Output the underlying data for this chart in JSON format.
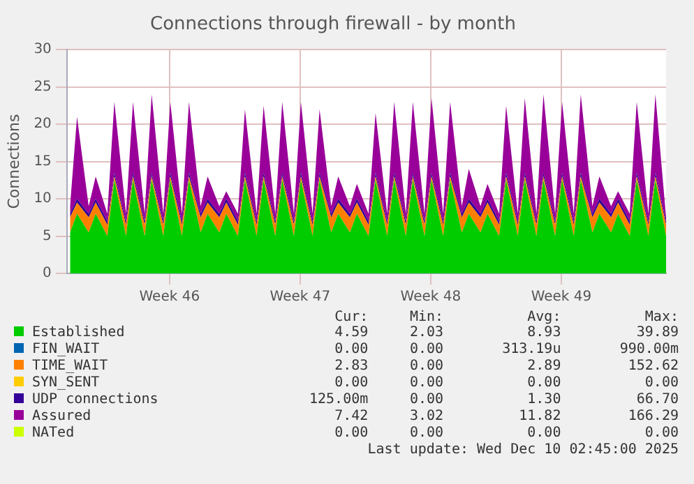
{
  "chart_data": {
    "type": "area",
    "stacked": true,
    "title": "Connections through firewall - by month",
    "ylabel": "Connections",
    "legend": "bottom",
    "grid": true,
    "marker": "none",
    "ylim": [
      0,
      30
    ],
    "yticks": [
      0,
      5,
      10,
      15,
      20,
      25,
      30
    ],
    "xlim": [
      "2025-11-08T00:00",
      "2025-12-10T02:45"
    ],
    "xticks": [
      {
        "value": "2025-11-13T12:00",
        "label": "Week 46"
      },
      {
        "value": "2025-11-20T12:00",
        "label": "Week 47"
      },
      {
        "value": "2025-11-27T12:00",
        "label": "Week 48"
      },
      {
        "value": "2025-12-04T12:00",
        "label": "Week 49"
      }
    ],
    "x": [
      "2025-11-08T04:00",
      "2025-11-08T13:00",
      "2025-11-09T04:00",
      "2025-11-09T13:00",
      "2025-11-10T04:00",
      "2025-11-10T13:00",
      "2025-11-11T04:00",
      "2025-11-11T13:00",
      "2025-11-12T04:00",
      "2025-11-12T13:00",
      "2025-11-13T04:00",
      "2025-11-13T13:00",
      "2025-11-14T04:00",
      "2025-11-14T13:00",
      "2025-11-15T04:00",
      "2025-11-15T13:00",
      "2025-11-16T04:00",
      "2025-11-16T13:00",
      "2025-11-17T04:00",
      "2025-11-17T13:00",
      "2025-11-18T04:00",
      "2025-11-18T13:00",
      "2025-11-19T04:00",
      "2025-11-19T13:00",
      "2025-11-20T04:00",
      "2025-11-20T13:00",
      "2025-11-21T04:00",
      "2025-11-21T13:00",
      "2025-11-22T04:00",
      "2025-11-22T13:00",
      "2025-11-23T04:00",
      "2025-11-23T13:00",
      "2025-11-24T04:00",
      "2025-11-24T13:00",
      "2025-11-25T04:00",
      "2025-11-25T13:00",
      "2025-11-26T04:00",
      "2025-11-26T13:00",
      "2025-11-27T04:00",
      "2025-11-27T13:00",
      "2025-11-28T04:00",
      "2025-11-28T13:00",
      "2025-11-29T04:00",
      "2025-11-29T13:00",
      "2025-11-30T04:00",
      "2025-11-30T13:00",
      "2025-12-01T04:00",
      "2025-12-01T13:00",
      "2025-12-02T04:00",
      "2025-12-02T13:00",
      "2025-12-03T04:00",
      "2025-12-03T13:00",
      "2025-12-04T04:00",
      "2025-12-04T13:00",
      "2025-12-05T04:00",
      "2025-12-05T13:00",
      "2025-12-06T04:00",
      "2025-12-06T13:00",
      "2025-12-07T04:00",
      "2025-12-07T13:00",
      "2025-12-08T04:00",
      "2025-12-08T13:00",
      "2025-12-09T04:00",
      "2025-12-09T13:00",
      "2025-12-10T02:45"
    ],
    "series": [
      {
        "name": "Established",
        "color": "#00cc00",
        "values": [
          5.5,
          8,
          5.5,
          8,
          5,
          12.5,
          5,
          12.5,
          5,
          12.5,
          5,
          12.5,
          5,
          12.5,
          5.5,
          8,
          5.5,
          8,
          5,
          12.5,
          5,
          12.5,
          5,
          12.5,
          5,
          12.5,
          5,
          12.5,
          5.5,
          8,
          5.5,
          8,
          5,
          12.5,
          5,
          12.5,
          5,
          12.5,
          5,
          12.5,
          5,
          12.5,
          5.5,
          8,
          5.5,
          8,
          5,
          12.5,
          5,
          12.5,
          5,
          12.5,
          5,
          12.5,
          5,
          12.5,
          5.5,
          8,
          5.5,
          8,
          5,
          12.5,
          5,
          12.5,
          5
        ]
      },
      {
        "name": "FIN_WAIT",
        "color": "#0066b3",
        "values": [
          null,
          null,
          null,
          null,
          null,
          null,
          null,
          null,
          null,
          null,
          null,
          null,
          null,
          null,
          null,
          null,
          null,
          null,
          null,
          null,
          null,
          null,
          null,
          null,
          null,
          null,
          null,
          null,
          null,
          null,
          null,
          null,
          null,
          null,
          null,
          null,
          null,
          null,
          null,
          null,
          null,
          null,
          null,
          null,
          null,
          null,
          null,
          null,
          null,
          null,
          null,
          null,
          null,
          null,
          null,
          null,
          null,
          null,
          null,
          null,
          null,
          null,
          null,
          null,
          null
        ]
      },
      {
        "name": "TIME_WAIT",
        "color": "#ff8000",
        "values": [
          2,
          1.5,
          2,
          1.5,
          1.5,
          0.5,
          1.5,
          0.5,
          1.5,
          0.5,
          1.5,
          0.5,
          1.5,
          0.5,
          2,
          1.5,
          2,
          1.5,
          1.5,
          0.5,
          1.5,
          0.5,
          1.5,
          0.5,
          1.5,
          0.5,
          1.5,
          0.5,
          2,
          1.5,
          2,
          1.5,
          1.5,
          0.5,
          1.5,
          0.5,
          1.5,
          0.5,
          1.5,
          0.5,
          1.5,
          0.5,
          2,
          1.5,
          2,
          1.5,
          1.5,
          0.5,
          1.5,
          0.5,
          1.5,
          0.5,
          1.5,
          0.5,
          1.5,
          0.5,
          2,
          1.5,
          2,
          1.5,
          1.5,
          0.5,
          1.5,
          0.5,
          1.5
        ]
      },
      {
        "name": "SYN_SENT",
        "color": "#ffcc00",
        "values": [
          null,
          null,
          null,
          null,
          null,
          null,
          null,
          null,
          null,
          null,
          null,
          null,
          null,
          null,
          null,
          null,
          null,
          null,
          null,
          null,
          null,
          null,
          null,
          null,
          null,
          null,
          null,
          null,
          null,
          null,
          null,
          null,
          null,
          null,
          null,
          null,
          null,
          null,
          null,
          null,
          null,
          null,
          null,
          null,
          null,
          null,
          null,
          null,
          null,
          null,
          null,
          null,
          null,
          null,
          null,
          null,
          null,
          null,
          null,
          null,
          null,
          null,
          null,
          null,
          null
        ]
      },
      {
        "name": "UDP connections",
        "color": "#330099",
        "values": [
          0.5,
          0.5,
          0.5,
          0.5,
          0.5,
          0.5,
          0.5,
          0.5,
          0.5,
          0.5,
          0.5,
          0.5,
          0.5,
          0.5,
          0.5,
          0.5,
          0.5,
          0.5,
          0.5,
          0.5,
          0.5,
          0.5,
          0.5,
          0.5,
          0.5,
          0.5,
          0.5,
          0.5,
          0.5,
          0.5,
          0.5,
          0.5,
          0.5,
          0.5,
          0.5,
          0.5,
          0.5,
          0.5,
          0.5,
          0.5,
          0.5,
          0.5,
          0.5,
          0.5,
          0.5,
          0.5,
          0.5,
          0.5,
          0.5,
          0.5,
          0.5,
          0.5,
          0.5,
          0.5,
          0.5,
          0.5,
          0.5,
          0.5,
          0.5,
          0.5,
          0.5,
          0.5,
          0.5,
          0.5,
          0.5
        ]
      },
      {
        "name": "Assured",
        "color": "#990099",
        "values": [
          1,
          11,
          1,
          3,
          1,
          9.5,
          1,
          9.5,
          1,
          10.5,
          1,
          9.5,
          1,
          9.5,
          1,
          3,
          1,
          1,
          1,
          8.5,
          1,
          9,
          1,
          9.5,
          1,
          9.5,
          1,
          8.5,
          1,
          3,
          1,
          2,
          1,
          8,
          1,
          9.5,
          1,
          9.5,
          1,
          10,
          1,
          9.5,
          1,
          4,
          1,
          2,
          1,
          9,
          1,
          10,
          1,
          10.5,
          1,
          9.5,
          1,
          10.5,
          1,
          3,
          1,
          1,
          1,
          9.5,
          1,
          10.5,
          0.5
        ]
      },
      {
        "name": "NATed",
        "color": "#ccff00",
        "values": [
          null,
          null,
          null,
          null,
          null,
          null,
          null,
          null,
          null,
          null,
          null,
          null,
          null,
          null,
          null,
          null,
          null,
          null,
          null,
          null,
          null,
          null,
          null,
          null,
          null,
          null,
          null,
          null,
          null,
          null,
          null,
          null,
          null,
          null,
          null,
          null,
          null,
          null,
          null,
          null,
          null,
          null,
          null,
          null,
          null,
          null,
          null,
          null,
          null,
          null,
          null,
          null,
          null,
          null,
          null,
          null,
          null,
          null,
          null,
          null,
          null,
          null,
          null,
          null,
          null
        ]
      }
    ],
    "annotations": [
      "Cur:",
      "Min:",
      "Avg:",
      "Max:",
      "4.59",
      "2.03",
      "8.93",
      "39.89",
      "0.00",
      "0.00",
      "313.19u",
      "990.00m",
      "2.83",
      "0.00",
      "2.89",
      "152.62",
      "0.00",
      "0.00",
      "0.00",
      "0.00",
      "125.00m",
      "0.00",
      "1.30",
      "66.70",
      "7.42",
      "3.02",
      "11.82",
      "166.29",
      "0.00",
      "0.00",
      "0.00",
      "0.00",
      "Last update: Wed Dec 10 02:45:00 2025"
    ]
  }
}
